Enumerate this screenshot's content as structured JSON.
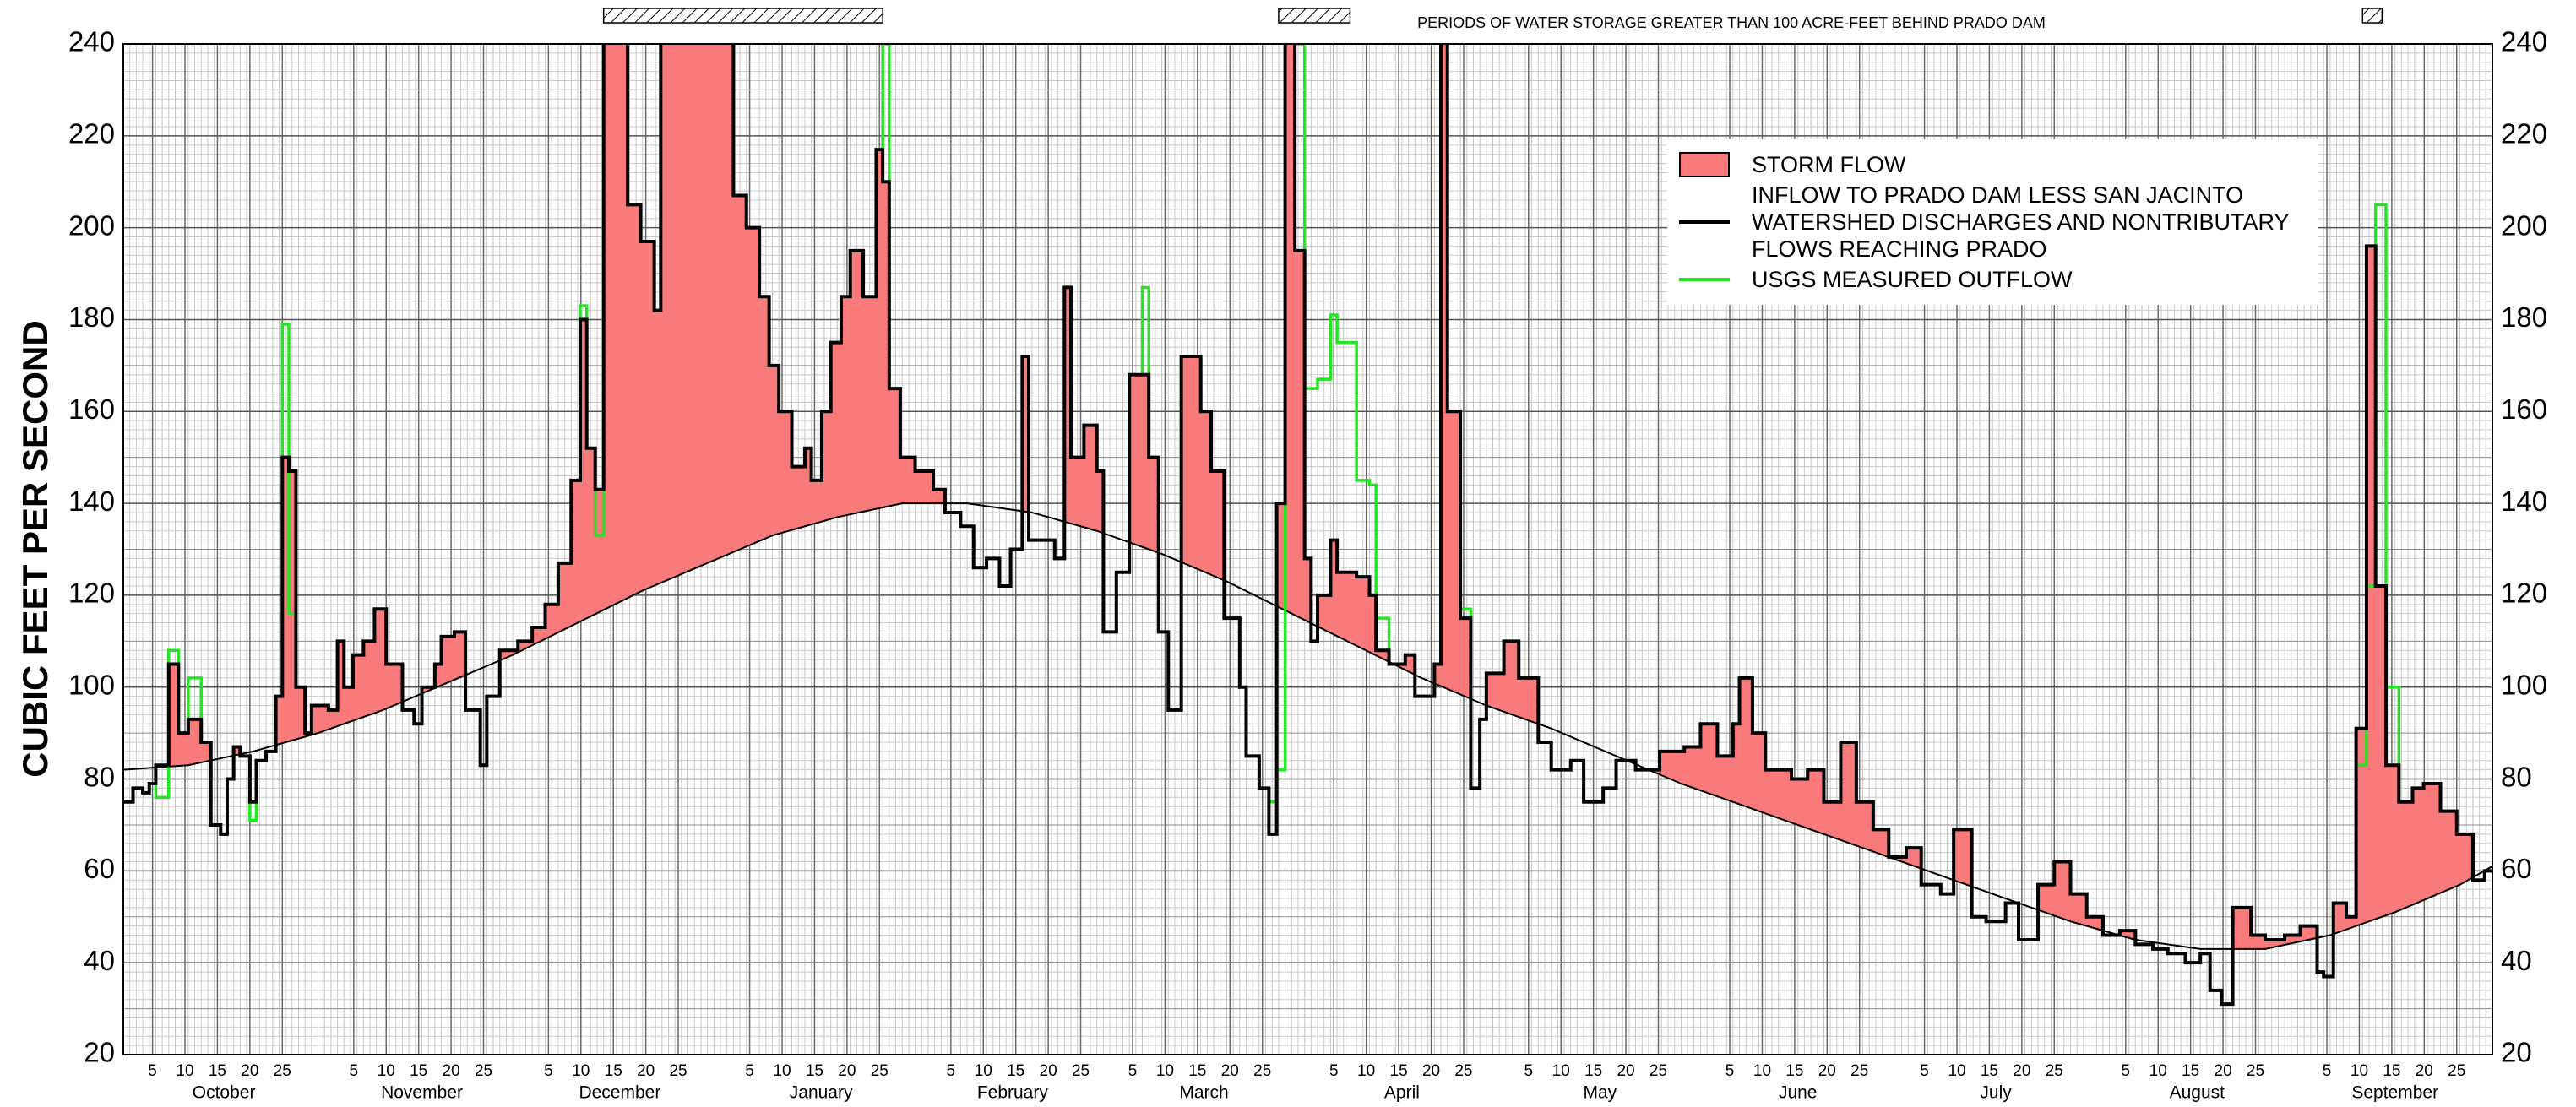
{
  "chart_data": {
    "type": "hydrograph",
    "y_label": "CUBIC FEET PER SECOND",
    "annotation": "PERIODS OF WATER STORAGE GREATER THAN 100 ACRE-FEET BEHIND PRADO DAM",
    "storage_periods": [
      [
        74,
        117
      ],
      [
        178,
        189
      ],
      [
        345,
        348
      ]
    ],
    "xlim": [
      0,
      365
    ],
    "ylim": [
      20,
      240
    ],
    "yticks": [
      20,
      40,
      60,
      80,
      100,
      120,
      140,
      160,
      180,
      200,
      220,
      240
    ],
    "grid": {
      "x_minor": 1,
      "y_minor": 2,
      "y_major": 10
    },
    "xticks": [
      {
        "value": 4.5,
        "label": "5"
      },
      {
        "value": 9.5,
        "label": "10"
      },
      {
        "value": 14.5,
        "label": "15"
      },
      {
        "value": 19.5,
        "label": "20"
      },
      {
        "value": 24.5,
        "label": "25"
      },
      {
        "value": 35.5,
        "label": "5"
      },
      {
        "value": 40.5,
        "label": "10"
      },
      {
        "value": 45.5,
        "label": "15"
      },
      {
        "value": 50.5,
        "label": "20"
      },
      {
        "value": 55.5,
        "label": "25"
      },
      {
        "value": 65.5,
        "label": "5"
      },
      {
        "value": 70.5,
        "label": "10"
      },
      {
        "value": 75.5,
        "label": "15"
      },
      {
        "value": 80.5,
        "label": "20"
      },
      {
        "value": 85.5,
        "label": "25"
      },
      {
        "value": 96.5,
        "label": "5"
      },
      {
        "value": 101.5,
        "label": "10"
      },
      {
        "value": 106.5,
        "label": "15"
      },
      {
        "value": 111.5,
        "label": "20"
      },
      {
        "value": 116.5,
        "label": "25"
      },
      {
        "value": 127.5,
        "label": "5"
      },
      {
        "value": 132.5,
        "label": "10"
      },
      {
        "value": 137.5,
        "label": "15"
      },
      {
        "value": 142.5,
        "label": "20"
      },
      {
        "value": 147.5,
        "label": "25"
      },
      {
        "value": 155.5,
        "label": "5"
      },
      {
        "value": 160.5,
        "label": "10"
      },
      {
        "value": 165.5,
        "label": "15"
      },
      {
        "value": 170.5,
        "label": "20"
      },
      {
        "value": 175.5,
        "label": "25"
      },
      {
        "value": 186.5,
        "label": "5"
      },
      {
        "value": 191.5,
        "label": "10"
      },
      {
        "value": 196.5,
        "label": "15"
      },
      {
        "value": 201.5,
        "label": "20"
      },
      {
        "value": 206.5,
        "label": "25"
      },
      {
        "value": 216.5,
        "label": "5"
      },
      {
        "value": 221.5,
        "label": "10"
      },
      {
        "value": 226.5,
        "label": "15"
      },
      {
        "value": 231.5,
        "label": "20"
      },
      {
        "value": 236.5,
        "label": "25"
      },
      {
        "value": 247.5,
        "label": "5"
      },
      {
        "value": 252.5,
        "label": "10"
      },
      {
        "value": 257.5,
        "label": "15"
      },
      {
        "value": 262.5,
        "label": "20"
      },
      {
        "value": 267.5,
        "label": "25"
      },
      {
        "value": 277.5,
        "label": "5"
      },
      {
        "value": 282.5,
        "label": "10"
      },
      {
        "value": 287.5,
        "label": "15"
      },
      {
        "value": 292.5,
        "label": "20"
      },
      {
        "value": 297.5,
        "label": "25"
      },
      {
        "value": 308.5,
        "label": "5"
      },
      {
        "value": 313.5,
        "label": "10"
      },
      {
        "value": 318.5,
        "label": "15"
      },
      {
        "value": 323.5,
        "label": "20"
      },
      {
        "value": 328.5,
        "label": "25"
      },
      {
        "value": 339.5,
        "label": "5"
      },
      {
        "value": 344.5,
        "label": "10"
      },
      {
        "value": 349.5,
        "label": "15"
      },
      {
        "value": 354.5,
        "label": "20"
      },
      {
        "value": 359.5,
        "label": "25"
      }
    ],
    "month_labels": [
      {
        "value": 15.5,
        "label": "October"
      },
      {
        "value": 46,
        "label": "November"
      },
      {
        "value": 76.5,
        "label": "December"
      },
      {
        "value": 107.5,
        "label": "January"
      },
      {
        "value": 137,
        "label": "February"
      },
      {
        "value": 166.5,
        "label": "March"
      },
      {
        "value": 197,
        "label": "April"
      },
      {
        "value": 227.5,
        "label": "May"
      },
      {
        "value": 258,
        "label": "June"
      },
      {
        "value": 288.5,
        "label": "July"
      },
      {
        "value": 319.5,
        "label": "August"
      },
      {
        "value": 350,
        "label": "September"
      }
    ],
    "storm_flow": {
      "name": "STORM FLOW",
      "color": "#f87a7a"
    },
    "baseflow": {
      "color": "#000000",
      "x": [
        0,
        10,
        20,
        30,
        40,
        50,
        60,
        70,
        80,
        90,
        100,
        110,
        120,
        130,
        140,
        150,
        160,
        170,
        180,
        190,
        200,
        210,
        220,
        230,
        240,
        250,
        260,
        270,
        280,
        290,
        300,
        310,
        320,
        330,
        340,
        350,
        360,
        365
      ],
      "values": [
        82,
        83,
        86,
        90,
        95,
        101,
        107,
        114,
        121,
        127,
        133,
        137,
        140,
        140,
        138,
        134,
        129,
        123,
        116,
        109,
        102,
        96,
        91,
        85,
        79,
        74,
        69,
        64,
        59,
        54,
        49,
        45,
        43,
        43,
        46,
        51,
        57,
        61
      ]
    },
    "series": [
      {
        "name": "INFLOW TO PRADO DAM LESS SAN JACINTO WATERSHED DISCHARGES AND NONTRIBUTARY FLOWS REACHING PRADO",
        "color": "#000000",
        "x": [
          0,
          1.5,
          3,
          4,
          5,
          7,
          8.5,
          10,
          12,
          13.5,
          15,
          16,
          17,
          18,
          19.5,
          20.5,
          22,
          23.5,
          24.5,
          25.5,
          26.6,
          28,
          29,
          31.6,
          33,
          34,
          35.4,
          37,
          38.7,
          40.5,
          43,
          44.8,
          46,
          48,
          49,
          51,
          52.7,
          55,
          56,
          58,
          60.8,
          63,
          65,
          67,
          69,
          70.4,
          71.4,
          72.7,
          74,
          76.7,
          77.7,
          79.7,
          81.8,
          82.8,
          94,
          96,
          98,
          99.5,
          101,
          103,
          105,
          106,
          107.6,
          109,
          110.6,
          112,
          114,
          116,
          117,
          118,
          119.7,
          122,
          124.8,
          126.6,
          129,
          131,
          133,
          135,
          136.7,
          138.5,
          139.5,
          141.8,
          143.5,
          145,
          146,
          148,
          150,
          151,
          153,
          155,
          158,
          159.5,
          161,
          163,
          166,
          167.6,
          169.6,
          172,
          173,
          175,
          176.5,
          177.7,
          179,
          180.5,
          182,
          183,
          184,
          186,
          187,
          190,
          192,
          193,
          195,
          197.5,
          199,
          202,
          203,
          204,
          206,
          207.6,
          209,
          210,
          212.7,
          215,
          218,
          220,
          223,
          225,
          228,
          230,
          233,
          236.7,
          240.5,
          243,
          245.6,
          248,
          249,
          251,
          253,
          257,
          259.5,
          262,
          264.6,
          267,
          269.6,
          272,
          274.7,
          277,
          280,
          282,
          284.8,
          287,
          290,
          292,
          295,
          297.5,
          300,
          302.5,
          305,
          307.6,
          310,
          312.7,
          315,
          317.7,
          320,
          321.5,
          323.3,
          325,
          327.8,
          330,
          333,
          335.4,
          338,
          339,
          340.5,
          342.5,
          344,
          345.6,
          347,
          348.6,
          350.6,
          352.7,
          354.4,
          357,
          359.5,
          362,
          363.8
        ],
        "values": [
          75,
          78,
          77,
          79,
          83,
          105,
          90,
          93,
          88,
          70,
          68,
          80,
          87,
          85,
          75,
          84,
          86,
          98,
          150,
          147,
          100,
          90,
          96,
          95,
          110,
          100,
          107,
          110,
          117,
          105,
          95,
          92,
          100,
          105,
          111,
          112,
          95,
          83,
          98,
          108,
          110,
          113,
          118,
          127,
          145,
          180,
          152,
          143,
          280,
          260,
          205,
          197,
          182,
          280,
          207,
          200,
          185,
          170,
          160,
          148,
          152,
          145,
          160,
          175,
          185,
          195,
          185,
          217,
          210,
          165,
          150,
          147,
          143,
          138,
          135,
          126,
          128,
          122,
          130,
          172,
          132,
          132,
          128,
          187,
          150,
          157,
          147,
          112,
          125,
          168,
          150,
          112,
          95,
          172,
          160,
          147,
          115,
          100,
          85,
          78,
          68,
          140,
          280,
          195,
          128,
          110,
          120,
          132,
          125,
          124,
          120,
          108,
          105,
          107,
          98,
          105,
          280,
          160,
          115,
          78,
          93,
          103,
          110,
          102,
          88,
          82,
          84,
          75,
          78,
          84,
          82,
          86,
          87,
          92,
          85,
          92,
          102,
          90,
          82,
          80,
          82,
          75,
          88,
          75,
          69,
          63,
          65,
          57,
          55,
          69,
          50,
          49,
          53,
          45,
          57,
          62,
          55,
          50,
          46,
          47,
          44,
          43,
          42,
          40,
          42,
          34,
          31,
          52,
          46,
          45,
          46,
          48,
          38,
          37,
          53,
          50,
          91,
          196,
          122,
          83,
          75,
          78,
          79,
          73,
          68,
          58,
          60
        ]
      },
      {
        "name": "USGS MEASURED OUTFLOW",
        "color": "#22e622",
        "x": [
          0,
          1.5,
          3,
          4,
          5,
          7,
          8.5,
          10,
          12,
          13.5,
          15,
          16,
          17,
          18,
          19.5,
          20.5,
          22,
          23.5,
          24.5,
          25.5,
          26.6,
          28,
          29,
          31.6,
          33,
          34,
          35.4,
          37,
          38.7,
          40.5,
          43,
          44.8,
          46,
          48,
          49,
          51,
          52.7,
          55,
          56,
          58,
          60.8,
          63,
          65,
          67,
          69,
          70.4,
          71.4,
          72.7,
          74,
          76.7,
          77.7,
          79.7,
          81.8,
          82.8,
          94,
          96,
          98,
          99.5,
          101,
          103,
          105,
          106,
          107.6,
          109,
          110.6,
          112,
          114,
          116,
          117,
          118,
          119.7,
          122,
          124.8,
          126.6,
          129,
          131,
          133,
          135,
          136.7,
          138.5,
          139.5,
          141.8,
          143.5,
          145,
          146,
          148,
          150,
          151,
          153,
          155,
          157,
          158,
          159.5,
          161,
          163,
          166,
          167.6,
          169.6,
          172,
          173,
          175,
          176.5,
          177.7,
          179,
          180.5,
          182,
          184,
          186,
          187,
          190,
          192,
          193,
          195,
          197.5,
          199,
          202,
          203,
          204,
          206,
          207.6,
          209,
          210,
          212.7,
          215,
          218,
          220,
          223,
          225,
          228,
          230,
          233,
          236.7,
          240.5,
          243,
          245.6,
          248,
          249,
          251,
          253,
          257,
          259.5,
          262,
          264.6,
          267,
          269.6,
          272,
          274.7,
          277,
          280,
          282,
          284.8,
          287,
          290,
          292,
          295,
          297.5,
          300,
          302.5,
          305,
          307.6,
          310,
          312.7,
          315,
          317.7,
          320,
          321.5,
          323.3,
          325,
          327.8,
          330,
          333,
          335.4,
          338,
          339,
          340.5,
          342.5,
          344,
          345.6,
          347,
          348.6,
          350.6,
          352.7,
          354.4,
          357,
          359.5,
          362,
          363.8
        ],
        "values": [
          75,
          78,
          77,
          79,
          76,
          108,
          90,
          102,
          88,
          70,
          68,
          80,
          87,
          85,
          71,
          84,
          86,
          98,
          179,
          116,
          100,
          90,
          96,
          95,
          110,
          100,
          107,
          110,
          117,
          105,
          95,
          92,
          100,
          105,
          111,
          112,
          95,
          83,
          98,
          108,
          110,
          113,
          118,
          127,
          145,
          183,
          152,
          133,
          280,
          260,
          205,
          197,
          182,
          280,
          207,
          200,
          185,
          170,
          160,
          148,
          152,
          145,
          160,
          175,
          185,
          195,
          185,
          217,
          240,
          165,
          150,
          147,
          143,
          138,
          135,
          126,
          128,
          122,
          130,
          172,
          132,
          132,
          128,
          187,
          150,
          157,
          147,
          112,
          125,
          168,
          187,
          150,
          112,
          95,
          172,
          160,
          147,
          115,
          100,
          85,
          78,
          75,
          82,
          280,
          240,
          165,
          167,
          181,
          175,
          145,
          144,
          115,
          105,
          107,
          98,
          105,
          280,
          160,
          117,
          78,
          93,
          103,
          110,
          102,
          88,
          82,
          84,
          75,
          78,
          84,
          82,
          86,
          87,
          92,
          85,
          92,
          102,
          90,
          82,
          80,
          82,
          75,
          88,
          75,
          69,
          63,
          65,
          57,
          55,
          69,
          50,
          49,
          53,
          45,
          57,
          62,
          55,
          50,
          46,
          47,
          44,
          43,
          42,
          40,
          42,
          34,
          31,
          52,
          46,
          45,
          46,
          48,
          38,
          37,
          53,
          50,
          83,
          122,
          205,
          100,
          75,
          78,
          79,
          73,
          68,
          58,
          60
        ]
      }
    ]
  }
}
